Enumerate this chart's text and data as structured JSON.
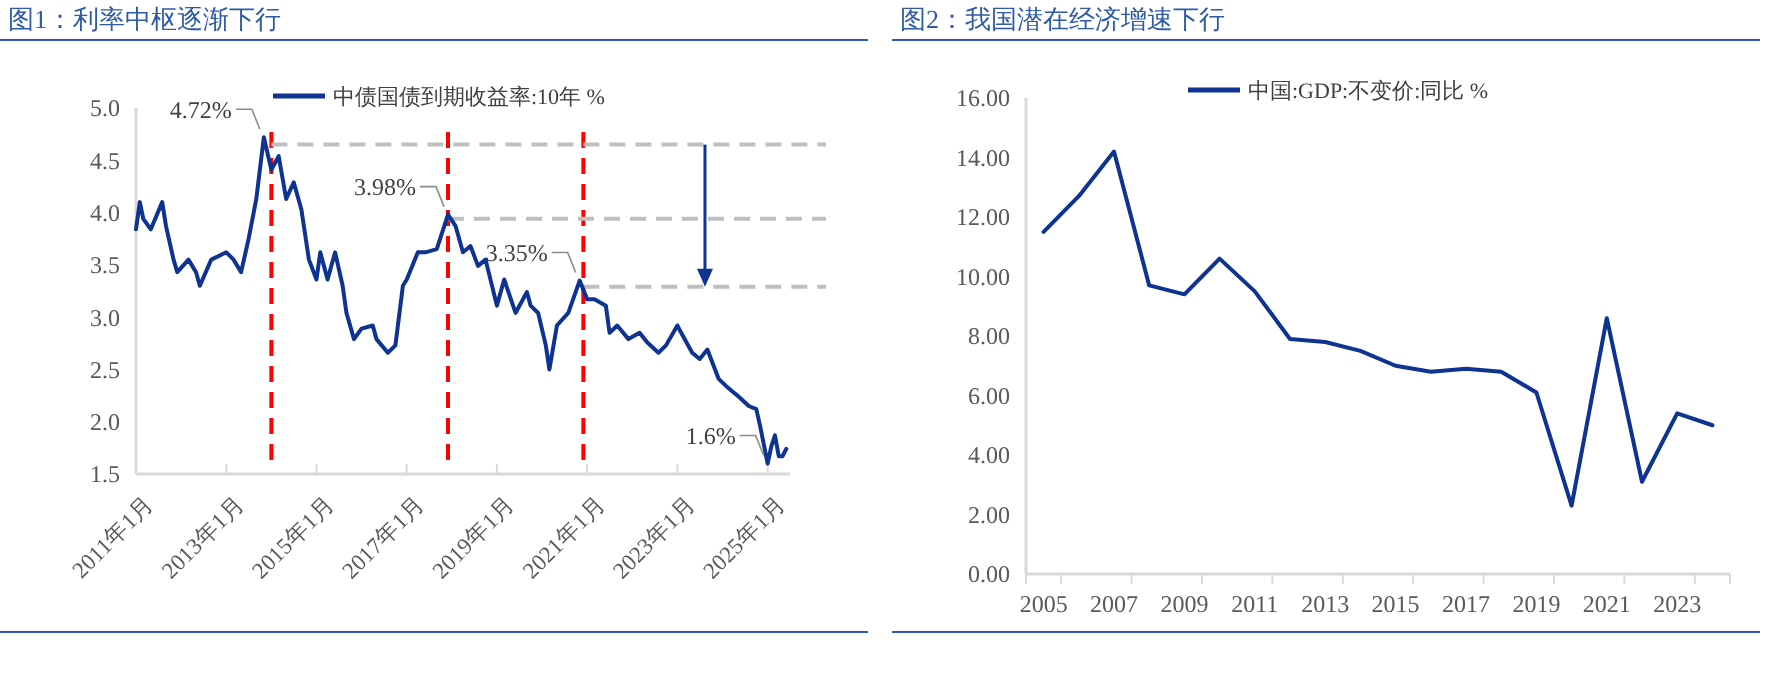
{
  "chart_data": [
    {
      "type": "line",
      "title": "图1：利率中枢逐渐下行",
      "legend": "top",
      "x": [
        "2011-01",
        "2011-02",
        "2011-03",
        "2011-05",
        "2011-08",
        "2011-09",
        "2011-11",
        "2011-12",
        "2012-03",
        "2012-05",
        "2012-06",
        "2012-09",
        "2013-01",
        "2013-03",
        "2013-05",
        "2013-07",
        "2013-09",
        "2013-11",
        "2014-01",
        "2014-03",
        "2014-05",
        "2014-07",
        "2014-09",
        "2014-11",
        "2015-01",
        "2015-02",
        "2015-04",
        "2015-06",
        "2015-08",
        "2015-09",
        "2015-11",
        "2016-01",
        "2016-04",
        "2016-05",
        "2016-08",
        "2016-10",
        "2016-12",
        "2017-01",
        "2017-04",
        "2017-06",
        "2017-09",
        "2017-12",
        "2018-02",
        "2018-04",
        "2018-06",
        "2018-08",
        "2018-10",
        "2019-01",
        "2019-03",
        "2019-06",
        "2019-09",
        "2019-10",
        "2019-12",
        "2020-02",
        "2020-03",
        "2020-05",
        "2020-08",
        "2020-11",
        "2021-01",
        "2021-03",
        "2021-06",
        "2021-07",
        "2021-09",
        "2021-12",
        "2022-03",
        "2022-05",
        "2022-08",
        "2022-10",
        "2023-01",
        "2023-02",
        "2023-05",
        "2023-07",
        "2023-09",
        "2023-12",
        "2024-02",
        "2024-04",
        "2024-05",
        "2024-08",
        "2024-10",
        "2024-11",
        "2025-01",
        "2025-02",
        "2025-03",
        "2025-04",
        "2025-05",
        "2025-06"
      ],
      "series": [
        {
          "name": "中债国债到期收益率:10年 %",
          "color": "#0e3390",
          "values": [
            3.84,
            4.1,
            3.94,
            3.84,
            4.1,
            3.87,
            3.55,
            3.43,
            3.55,
            3.43,
            3.3,
            3.55,
            3.62,
            3.55,
            3.43,
            3.75,
            4.13,
            4.72,
            4.41,
            4.54,
            4.13,
            4.29,
            4.03,
            3.55,
            3.36,
            3.62,
            3.36,
            3.62,
            3.3,
            3.04,
            2.79,
            2.89,
            2.92,
            2.79,
            2.66,
            2.73,
            3.3,
            3.36,
            3.62,
            3.62,
            3.65,
            3.98,
            3.87,
            3.62,
            3.68,
            3.49,
            3.55,
            3.11,
            3.36,
            3.04,
            3.24,
            3.11,
            3.04,
            2.73,
            2.5,
            2.92,
            3.04,
            3.35,
            3.17,
            3.17,
            3.11,
            2.85,
            2.92,
            2.79,
            2.85,
            2.76,
            2.66,
            2.73,
            2.92,
            2.85,
            2.66,
            2.6,
            2.69,
            2.41,
            2.34,
            2.28,
            2.25,
            2.15,
            2.12,
            1.96,
            1.6,
            1.77,
            1.87,
            1.67,
            1.67,
            1.74
          ]
        }
      ],
      "xlim": [
        "2011-01",
        "2025-07"
      ],
      "xticks": [
        {
          "value": "2011-01",
          "label": "2011年1月"
        },
        {
          "value": "2013-01",
          "label": "2013年1月"
        },
        {
          "value": "2015-01",
          "label": "2015年1月"
        },
        {
          "value": "2017-01",
          "label": "2017年1月"
        },
        {
          "value": "2019-01",
          "label": "2019年1月"
        },
        {
          "value": "2021-01",
          "label": "2021年1月"
        },
        {
          "value": "2023-01",
          "label": "2023年1月"
        },
        {
          "value": "2025-01",
          "label": "2025年1月"
        }
      ],
      "ylim": [
        1.5,
        5.0
      ],
      "yticks": [
        {
          "value": 1.5,
          "label": "1.5"
        },
        {
          "value": 2,
          "label": "2.0"
        },
        {
          "value": 2.5,
          "label": "2.5"
        },
        {
          "value": 3,
          "label": "3.0"
        },
        {
          "value": 3.5,
          "label": "3.5"
        },
        {
          "value": 4,
          "label": "4.0"
        },
        {
          "value": 4.5,
          "label": "4.5"
        },
        {
          "value": 5,
          "label": "5.0"
        }
      ],
      "ref_lines": [
        {
          "axis": "x",
          "value": "2014-01",
          "color": "#ff0000",
          "line_style": "dashed"
        },
        {
          "axis": "x",
          "value": "2017-12",
          "color": "#ff0000",
          "line_style": "dashed"
        },
        {
          "axis": "x",
          "value": "2020-12",
          "color": "#ff0000",
          "line_style": "dashed"
        },
        {
          "axis": "y",
          "value": 4.65,
          "color": "#bfbfbf",
          "line_style": "dashed"
        },
        {
          "axis": "y",
          "value": 3.94,
          "color": "#bfbfbf",
          "line_style": "dashed"
        },
        {
          "axis": "y",
          "value": 3.29,
          "color": "#bfbfbf",
          "line_style": "dashed"
        }
      ],
      "annotations": [
        {
          "text": "4.72%",
          "x": "2013-11",
          "y": 4.72
        },
        {
          "text": "3.98%",
          "x": "2017-12",
          "y": 3.98
        },
        {
          "text": "3.35%",
          "x": "2020-11",
          "y": 3.35
        },
        {
          "text": "1.6%",
          "x": "2025-01",
          "y": 1.6
        }
      ]
    },
    {
      "type": "line",
      "title": "图2：我国潜在经济增速下行",
      "legend": "top",
      "categories": [
        "2005",
        null,
        "2007",
        null,
        "2009",
        null,
        "2011",
        null,
        "2013",
        null,
        "2015",
        null,
        "2017",
        null,
        "2019",
        null,
        "2021",
        null,
        "2023",
        null
      ],
      "series": [
        {
          "name": "中国:GDP:不变价:同比 %",
          "color": "#0e3390",
          "values": [
            11.5,
            12.7,
            14.2,
            9.7,
            9.4,
            10.6,
            9.5,
            7.9,
            7.8,
            7.5,
            7.0,
            6.8,
            6.9,
            6.8,
            6.1,
            2.3,
            8.6,
            3.1,
            5.4,
            5.0
          ]
        }
      ],
      "ylim": [
        0,
        16
      ],
      "yticks": [
        {
          "value": 0,
          "label": "0.00"
        },
        {
          "value": 2,
          "label": "2.00"
        },
        {
          "value": 4,
          "label": "4.00"
        },
        {
          "value": 6,
          "label": "6.00"
        },
        {
          "value": 8,
          "label": "8.00"
        },
        {
          "value": 10,
          "label": "10.00"
        },
        {
          "value": 12,
          "label": "12.00"
        },
        {
          "value": 14,
          "label": "14.00"
        },
        {
          "value": 16,
          "label": "16.00"
        }
      ]
    }
  ]
}
